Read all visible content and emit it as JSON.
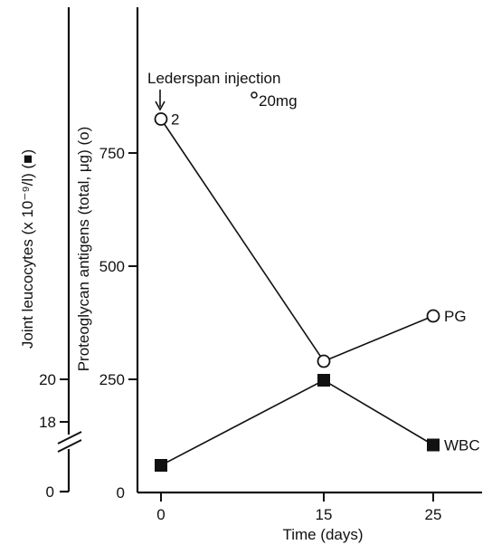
{
  "chart_data": {
    "type": "line",
    "x": [
      0,
      15,
      25
    ],
    "x_ticks": [
      "0",
      "15",
      "25"
    ],
    "xlabel": "Time (days)",
    "y_left_label": "Joint leucocytes (x 10⁻⁹/l) (■)",
    "y_left_ticks": [
      "0",
      "18",
      "20"
    ],
    "ylabel": "Proteoglycan antigens (total, μg) (o)",
    "y_ticks": [
      "0",
      "250",
      "500",
      "750"
    ],
    "ylim": [
      0,
      1000
    ],
    "series": [
      {
        "name": "PG",
        "marker": "open-circle",
        "values": [
          825,
          290,
          390
        ],
        "point_labels": [
          "2",
          "",
          ""
        ]
      },
      {
        "name": "WBC",
        "marker": "filled-square",
        "values": [
          60,
          248,
          105
        ]
      }
    ],
    "annotations": {
      "injection": "Lederspan injection",
      "dose": "20mg"
    },
    "grid": false
  }
}
